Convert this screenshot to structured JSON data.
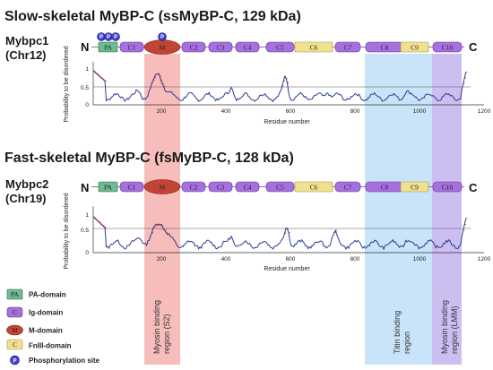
{
  "colors": {
    "pa": "#6fba92",
    "ig": "#a770df",
    "m": "#c24436",
    "fn": "#f0e191",
    "phos": "#3f3fd0",
    "region_s2": "#f3a7a4",
    "region_titin": "#bbdcf7",
    "region_lmm": "#c4b3ef",
    "trace_ordered": "#2b3c92",
    "trace_disordered": "#b12a2a"
  },
  "panels": [
    {
      "title": "Slow-skeletal MyBP-C (ssMyBP-C, 129 kDa)",
      "gene": "Mybpc1",
      "chromosome": "(Chr12)",
      "n_term": "N",
      "c_term": "C",
      "domains": [
        "PA",
        "C1",
        "M",
        "C2",
        "C3",
        "C4",
        "C5",
        "C6",
        "C7",
        "C8",
        "C9",
        "C10"
      ],
      "phospho_labels": [
        "P",
        "P",
        "P",
        "P"
      ],
      "xlabel": "Residue number",
      "ylabel": "Probability to be disordered",
      "x_ticks": [
        "200",
        "400",
        "600",
        "800",
        "1000",
        "1200"
      ],
      "y_ticks": [
        "0",
        "0.5",
        "1"
      ]
    },
    {
      "title": "Fast-skeletal MyBP-C (fsMyBP-C, 128 kDa)",
      "gene": "Mybpc2",
      "chromosome": "(Chr19)",
      "n_term": "N",
      "c_term": "C",
      "domains": [
        "PA",
        "C1",
        "M",
        "C2",
        "C3",
        "C4",
        "C5",
        "C6",
        "C7",
        "C8",
        "C9",
        "C10"
      ],
      "phospho_labels": [],
      "xlabel": "Residue number",
      "ylabel": "Probability to be disordered",
      "x_ticks": [
        "200",
        "400",
        "600",
        "800",
        "1000",
        "1200"
      ],
      "y_ticks": [
        "0",
        "0.5",
        "1"
      ]
    }
  ],
  "regions": [
    {
      "label": "Myosin binding region (S2)"
    },
    {
      "label": "Titin binding region"
    },
    {
      "label": "Myosin binding region (LMM)"
    }
  ],
  "legend": [
    {
      "symbol": "PA",
      "label": "PA-domain"
    },
    {
      "symbol": "C",
      "label": "Ig-domain"
    },
    {
      "symbol": "M",
      "label": "M-domain"
    },
    {
      "symbol": "C",
      "label": "FnIII-domain"
    },
    {
      "symbol": "P",
      "label": "Phosphorylation site"
    }
  ],
  "threshold": 0.5,
  "x_range": [
    0,
    1200
  ],
  "y_range": [
    0,
    1
  ]
}
